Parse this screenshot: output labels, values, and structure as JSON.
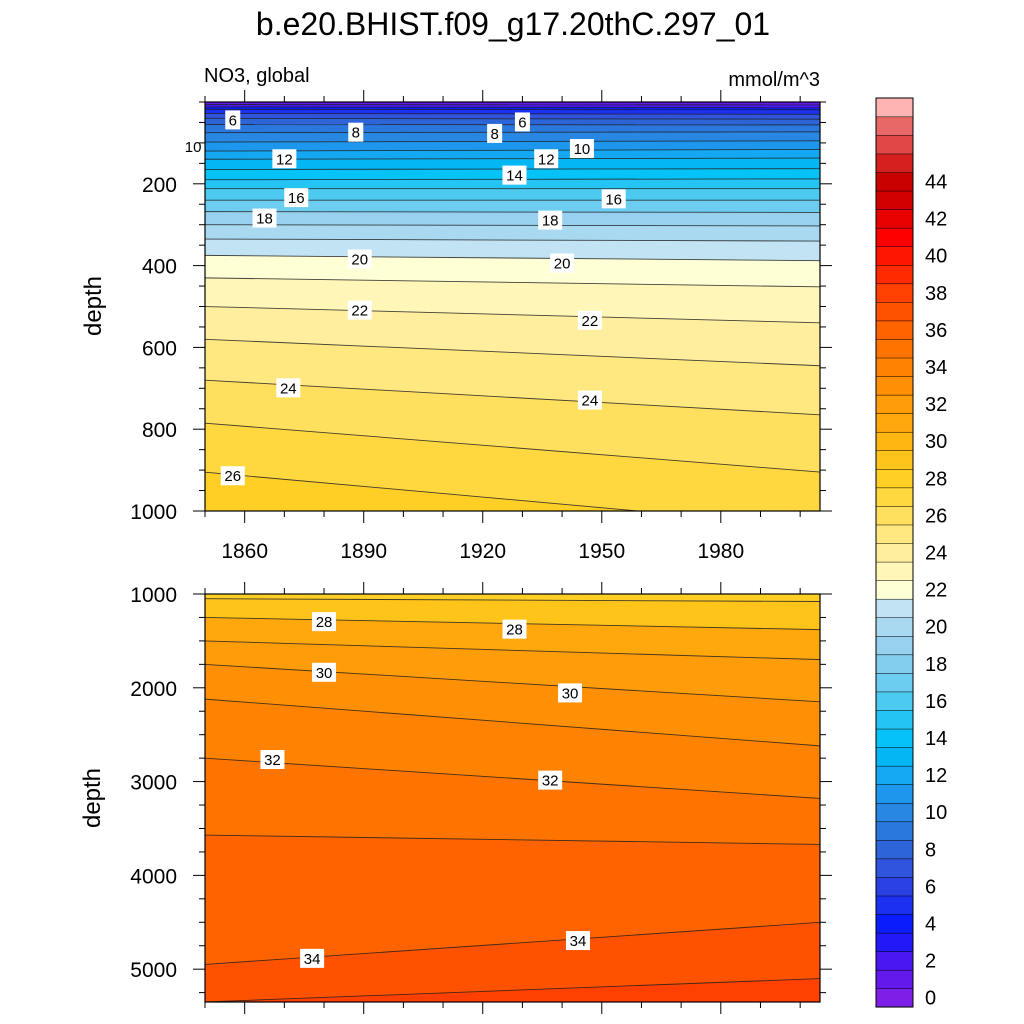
{
  "figure": {
    "title": "b.e20.BHIST.f09_g17.20thC.297_01",
    "left_string": "NO3, global",
    "right_string": "mmol/m^3"
  },
  "chart_data": [
    {
      "type": "contour",
      "panel": "upper",
      "title": "NO3, global",
      "units": "mmol/m^3",
      "xlabel": "",
      "ylabel": "depth",
      "xlim": [
        1850,
        2005
      ],
      "ylim": [
        1000,
        0
      ],
      "y_reversed": true,
      "xticks": [
        1860,
        1890,
        1920,
        1950,
        1980
      ],
      "xtick_labels": [
        "1860",
        "1890",
        "1920",
        "1950",
        "1980"
      ],
      "yticks": [
        200,
        400,
        600,
        800,
        1000
      ],
      "ytick_labels": [
        "200",
        "400",
        "600",
        "800",
        "1000"
      ],
      "contour_depths": [
        {
          "level": 2,
          "start": 6,
          "end": 7
        },
        {
          "level": 4,
          "start": 12,
          "end": 14
        },
        {
          "level": 5,
          "start": 18,
          "end": 19
        },
        {
          "level": 6,
          "start": 28,
          "end": 30
        },
        {
          "level": 7,
          "start": 40,
          "end": 42
        },
        {
          "level": 8,
          "start": 55,
          "end": 56
        },
        {
          "level": 9,
          "start": 75,
          "end": 73
        },
        {
          "level": 10,
          "start": 98,
          "end": 95
        },
        {
          "level": 11,
          "start": 120,
          "end": 116
        },
        {
          "level": 12,
          "start": 140,
          "end": 137
        },
        {
          "level": 13,
          "start": 165,
          "end": 163
        },
        {
          "level": 14,
          "start": 190,
          "end": 188
        },
        {
          "level": 15,
          "start": 212,
          "end": 212
        },
        {
          "level": 16,
          "start": 240,
          "end": 240
        },
        {
          "level": 17,
          "start": 268,
          "end": 270
        },
        {
          "level": 18,
          "start": 300,
          "end": 303
        },
        {
          "level": 19,
          "start": 335,
          "end": 340
        },
        {
          "level": 20,
          "start": 375,
          "end": 388
        },
        {
          "level": 21,
          "start": 430,
          "end": 452
        },
        {
          "level": 22,
          "start": 500,
          "end": 540
        },
        {
          "level": 23,
          "start": 580,
          "end": 645
        },
        {
          "level": 24,
          "start": 680,
          "end": 765
        },
        {
          "level": 25,
          "start": 785,
          "end": 905
        },
        {
          "level": 26,
          "start": 905,
          "end": 1040
        }
      ],
      "contour_labels": [
        {
          "text": "6",
          "x": 1857,
          "depth": 45
        },
        {
          "text": "6",
          "x": 1930,
          "depth": 50
        },
        {
          "text": "8",
          "x": 1888,
          "depth": 75
        },
        {
          "text": "8",
          "x": 1923,
          "depth": 78
        },
        {
          "text": "10",
          "x": 1847,
          "depth": 110
        },
        {
          "text": "10",
          "x": 1945,
          "depth": 115
        },
        {
          "text": "12",
          "x": 1870,
          "depth": 140
        },
        {
          "text": "12",
          "x": 1936,
          "depth": 140
        },
        {
          "text": "14",
          "x": 1928,
          "depth": 180
        },
        {
          "text": "16",
          "x": 1873,
          "depth": 235
        },
        {
          "text": "16",
          "x": 1953,
          "depth": 238
        },
        {
          "text": "18",
          "x": 1865,
          "depth": 285
        },
        {
          "text": "18",
          "x": 1937,
          "depth": 290
        },
        {
          "text": "20",
          "x": 1889,
          "depth": 385
        },
        {
          "text": "20",
          "x": 1940,
          "depth": 395
        },
        {
          "text": "22",
          "x": 1889,
          "depth": 510
        },
        {
          "text": "22",
          "x": 1947,
          "depth": 535
        },
        {
          "text": "24",
          "x": 1871,
          "depth": 700
        },
        {
          "text": "24",
          "x": 1947,
          "depth": 730
        },
        {
          "text": "26",
          "x": 1857,
          "depth": 915
        }
      ]
    },
    {
      "type": "contour",
      "panel": "lower",
      "xlabel": "",
      "ylabel": "depth",
      "xlim": [
        1850,
        2005
      ],
      "ylim": [
        5350,
        1000
      ],
      "y_reversed": true,
      "xticks": [
        1860,
        1890,
        1920,
        1950,
        1980
      ],
      "yticks": [
        1000,
        2000,
        3000,
        4000,
        5000
      ],
      "ytick_labels": [
        "1000",
        "2000",
        "3000",
        "4000",
        "5000"
      ],
      "contour_depths": [
        {
          "level": 27,
          "start": 1050,
          "end": 1080
        },
        {
          "level": 28,
          "start": 1250,
          "end": 1380
        },
        {
          "level": 29,
          "start": 1500,
          "end": 1700
        },
        {
          "level": 30,
          "start": 1750,
          "end": 2150
        },
        {
          "level": 31,
          "start": 2120,
          "end": 2620
        },
        {
          "level": 32,
          "start": 2750,
          "end": 3180
        },
        {
          "level": 33,
          "start": 3570,
          "end": 3670
        },
        {
          "level": 34,
          "start": 4950,
          "end": 4500
        },
        {
          "level": 35,
          "start": 5350,
          "end": 5100
        }
      ],
      "contour_labels": [
        {
          "text": "28",
          "x": 1880,
          "depth": 1300
        },
        {
          "text": "28",
          "x": 1928,
          "depth": 1380
        },
        {
          "text": "30",
          "x": 1880,
          "depth": 1840
        },
        {
          "text": "30",
          "x": 1942,
          "depth": 2060
        },
        {
          "text": "32",
          "x": 1867,
          "depth": 2770
        },
        {
          "text": "32",
          "x": 1937,
          "depth": 2990
        },
        {
          "text": "34",
          "x": 1877,
          "depth": 4890
        },
        {
          "text": "34",
          "x": 1944,
          "depth": 4700
        }
      ]
    }
  ],
  "colorbar": {
    "labels": [
      "0",
      "2",
      "4",
      "6",
      "8",
      "10",
      "12",
      "14",
      "16",
      "18",
      "20",
      "22",
      "24",
      "26",
      "28",
      "30",
      "32",
      "34",
      "36",
      "38",
      "40",
      "42",
      "44"
    ],
    "colors": [
      "#7d1fe6",
      "#6318ec",
      "#4a17f2",
      "#2318f7",
      "#0a1cfc",
      "#1c30f2",
      "#2c41e3",
      "#3054dd",
      "#2d64d8",
      "#2a77dd",
      "#2787e3",
      "#1d97ed",
      "#14a8f2",
      "#05b6f5",
      "#05c3f7",
      "#24c5f5",
      "#4ccaf0",
      "#6ccdf0",
      "#83cdef",
      "#97d1ef",
      "#a9d9f0",
      "#c1e3f4",
      "#ffffd6",
      "#fff6b8",
      "#ffee9e",
      "#ffe880",
      "#ffe05e",
      "#ffd840",
      "#ffcf26",
      "#ffc41a",
      "#ffb612",
      "#ffa80d",
      "#ff9c0a",
      "#ff9005",
      "#ff8200",
      "#ff7300",
      "#ff6300",
      "#ff5200",
      "#ff4000",
      "#ff2a00",
      "#ff1600",
      "#ff0000",
      "#e80000",
      "#d20000",
      "#c80000",
      "#d62020",
      "#e04848",
      "#e86868",
      "#ffb4b4"
    ]
  }
}
